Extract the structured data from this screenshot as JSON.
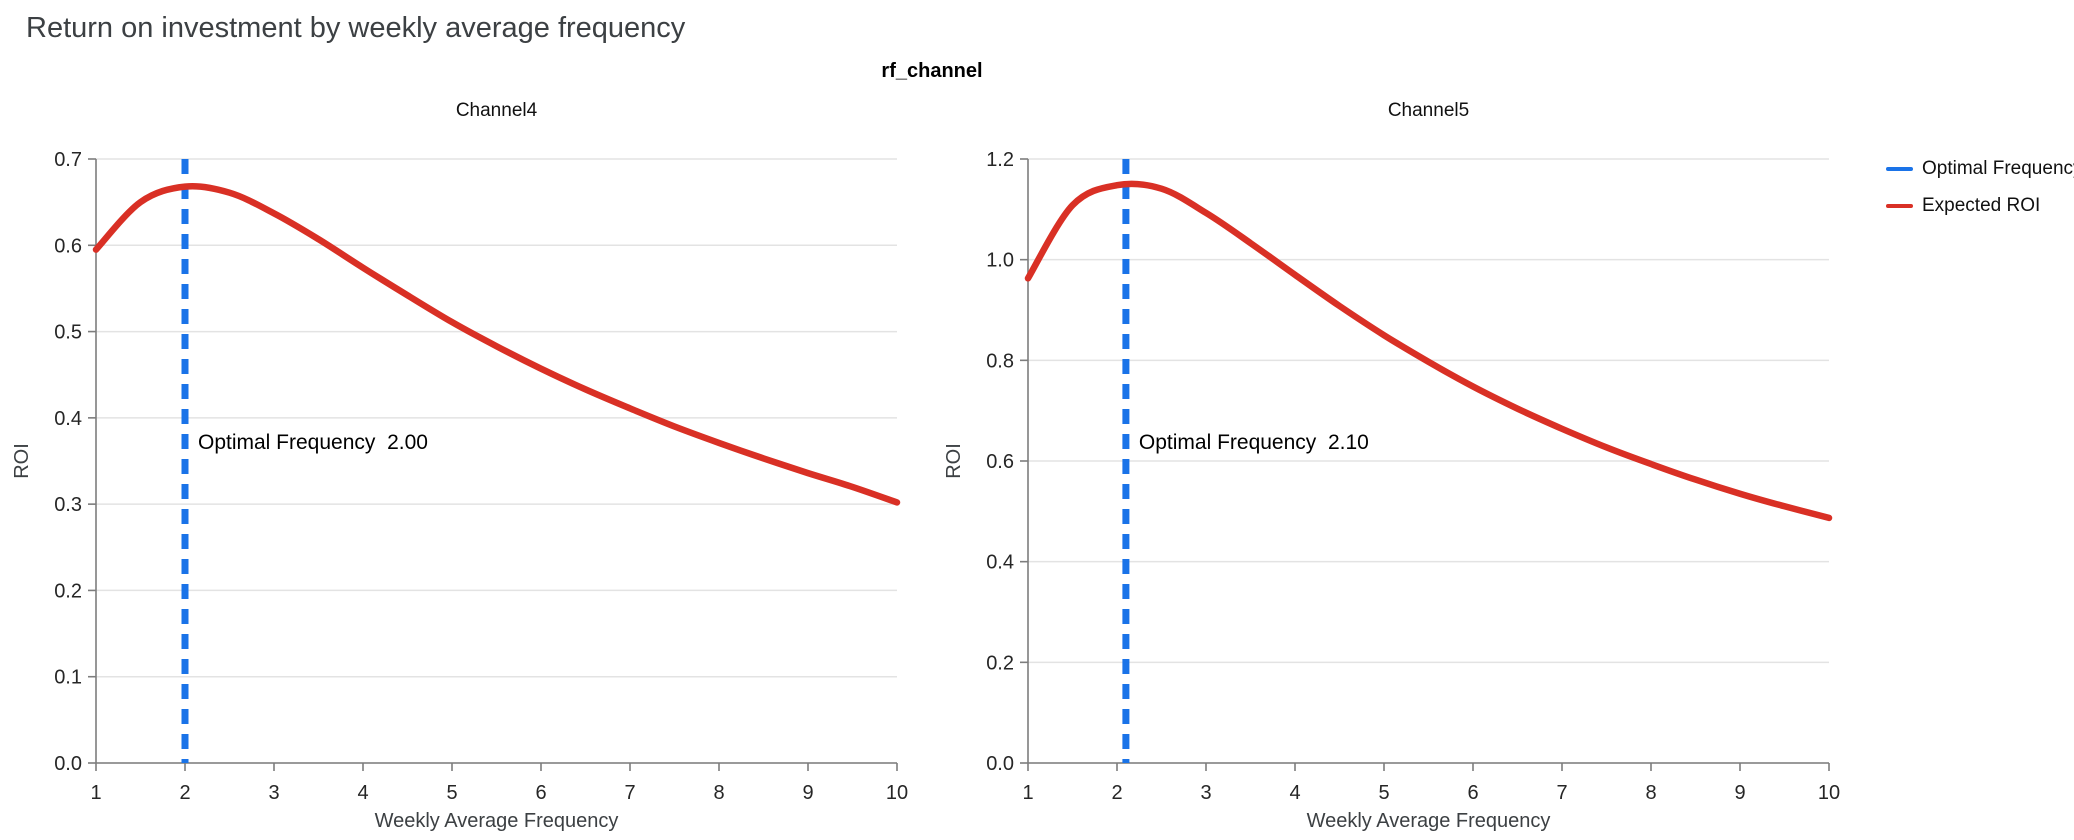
{
  "page": {
    "title": "Return on investment by weekly average frequency",
    "suptitle": "rf_channel"
  },
  "legend": {
    "position": "right-outside-top",
    "items": [
      {
        "label": "Optimal Frequency",
        "color": "#1a73e8"
      },
      {
        "label": "Expected ROI",
        "color": "#d93025"
      }
    ]
  },
  "chart_data": [
    {
      "type": "line",
      "title": "Channel4",
      "xlabel": "Weekly Average Frequency",
      "ylabel": "ROI",
      "xlim": [
        1,
        10
      ],
      "ylim": [
        0,
        0.7
      ],
      "xticks": [
        1,
        2,
        3,
        4,
        5,
        6,
        7,
        8,
        9,
        10
      ],
      "yticks": [
        0.0,
        0.1,
        0.2,
        0.3,
        0.4,
        0.5,
        0.6,
        0.7
      ],
      "grid": "horizontal",
      "series": [
        {
          "name": "Expected ROI",
          "color": "#d93025",
          "x": [
            1,
            1.5,
            2,
            2.5,
            3,
            3.5,
            4,
            4.5,
            5,
            5.5,
            6,
            6.5,
            7,
            7.5,
            8,
            8.5,
            9,
            9.5,
            10
          ],
          "y": [
            0.595,
            0.65,
            0.668,
            0.661,
            0.637,
            0.607,
            0.574,
            0.542,
            0.511,
            0.483,
            0.457,
            0.433,
            0.411,
            0.39,
            0.371,
            0.353,
            0.336,
            0.32,
            0.302
          ]
        }
      ],
      "optimal_line": {
        "x": 2.0,
        "color": "#1a73e8",
        "style": "dashed"
      },
      "annotation": {
        "text": "Optimal Frequency  2.00"
      }
    },
    {
      "type": "line",
      "title": "Channel5",
      "xlabel": "Weekly Average Frequency",
      "ylabel": "ROI",
      "xlim": [
        1,
        10
      ],
      "ylim": [
        0,
        1.2
      ],
      "xticks": [
        1,
        2,
        3,
        4,
        5,
        6,
        7,
        8,
        9,
        10
      ],
      "yticks": [
        0.0,
        0.2,
        0.4,
        0.6,
        0.8,
        1.0,
        1.2
      ],
      "grid": "horizontal",
      "series": [
        {
          "name": "Expected ROI",
          "color": "#d93025",
          "x": [
            1,
            1.5,
            2,
            2.5,
            3,
            3.5,
            4,
            4.5,
            5,
            5.5,
            6,
            6.5,
            7,
            7.5,
            8,
            8.5,
            9,
            9.5,
            10
          ],
          "y": [
            0.963,
            1.108,
            1.148,
            1.141,
            1.093,
            1.033,
            0.97,
            0.908,
            0.85,
            0.797,
            0.748,
            0.704,
            0.664,
            0.627,
            0.594,
            0.563,
            0.535,
            0.51,
            0.487
          ]
        }
      ],
      "optimal_line": {
        "x": 2.1,
        "color": "#1a73e8",
        "style": "dashed"
      },
      "annotation": {
        "text": "Optimal Frequency  2.10"
      }
    }
  ]
}
